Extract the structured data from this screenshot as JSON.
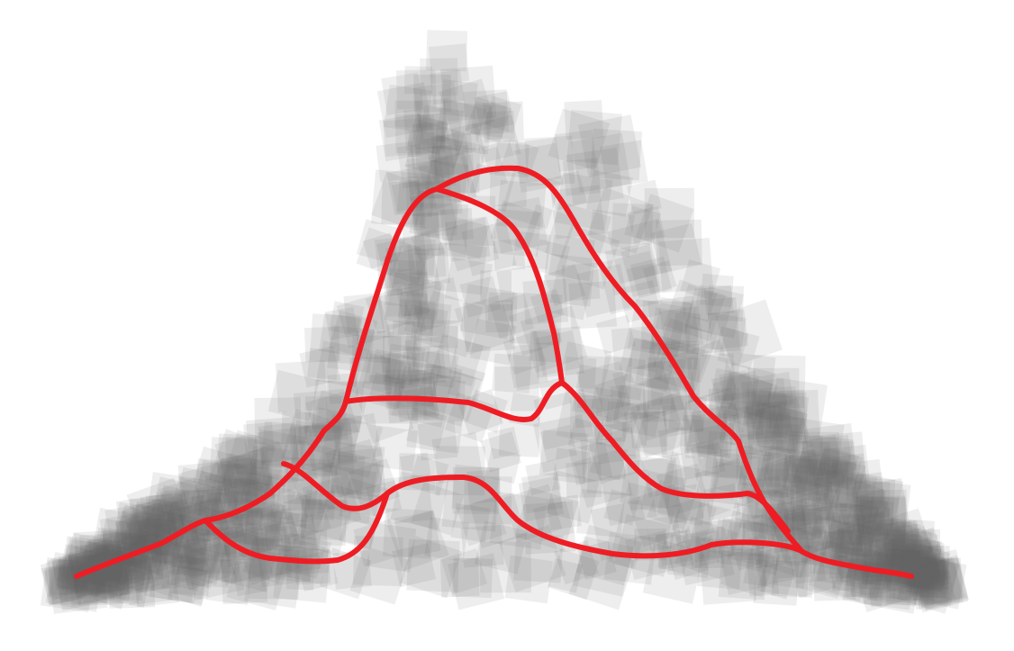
{
  "figure": {
    "description_visible_text": "",
    "background_color": "#ffffff",
    "square_color": "#666666",
    "curve_color": "#ee1d24"
  }
}
